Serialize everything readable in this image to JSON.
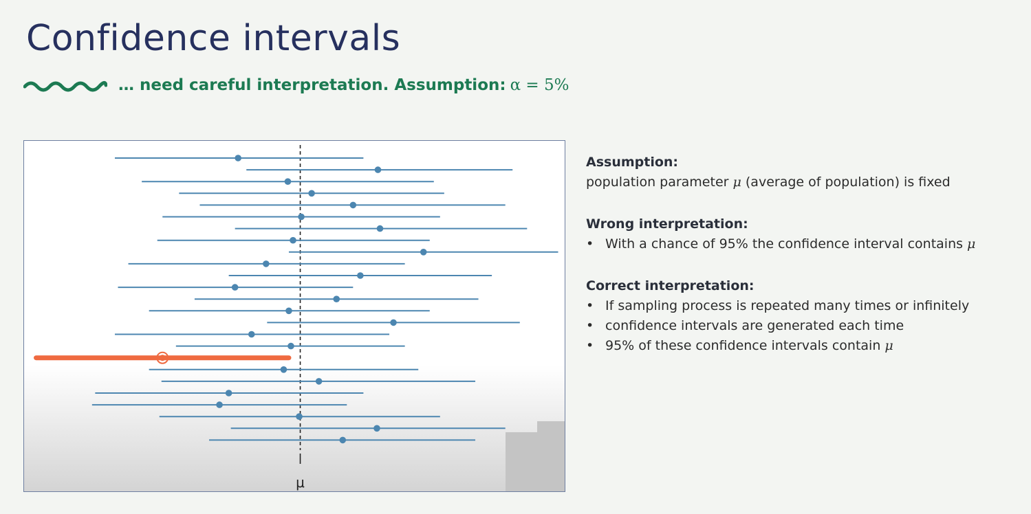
{
  "title": "Confidence intervals",
  "subtitle": {
    "text": "… need careful interpretation.  Assumption:",
    "formula": "α = 5%",
    "wave_color": "#1c7a52"
  },
  "chart_data": {
    "type": "scatter",
    "description_label": "μ",
    "mu": 0,
    "intervals": [
      {
        "lo": -1.79,
        "mid": -0.6,
        "hi": 0.61
      },
      {
        "lo": -0.52,
        "mid": 0.75,
        "hi": 2.05
      },
      {
        "lo": -1.53,
        "mid": -0.12,
        "hi": 1.29
      },
      {
        "lo": -1.17,
        "mid": 0.11,
        "hi": 1.39
      },
      {
        "lo": -0.97,
        "mid": 0.51,
        "hi": 1.98
      },
      {
        "lo": -1.33,
        "mid": 0.01,
        "hi": 1.35
      },
      {
        "lo": -0.63,
        "mid": 0.77,
        "hi": 2.19
      },
      {
        "lo": -1.38,
        "mid": -0.07,
        "hi": 1.25
      },
      {
        "lo": -0.11,
        "mid": 1.19,
        "hi": 2.49
      },
      {
        "lo": -1.66,
        "mid": -0.33,
        "hi": 1.01
      },
      {
        "lo": -0.69,
        "mid": 0.58,
        "hi": 1.85
      },
      {
        "lo": -1.76,
        "mid": -0.63,
        "hi": 0.51
      },
      {
        "lo": -1.02,
        "mid": 0.35,
        "hi": 1.72
      },
      {
        "lo": -1.46,
        "mid": -0.11,
        "hi": 1.25
      },
      {
        "lo": -0.32,
        "mid": 0.9,
        "hi": 2.12
      },
      {
        "lo": -1.79,
        "mid": -0.47,
        "hi": 0.86
      },
      {
        "lo": -1.2,
        "mid": -0.09,
        "hi": 1.01
      },
      {
        "lo": -2.55,
        "mid": -1.33,
        "hi": -0.11,
        "highlight": true
      },
      {
        "lo": -1.46,
        "mid": -0.16,
        "hi": 1.14
      },
      {
        "lo": -1.34,
        "mid": 0.18,
        "hi": 1.69
      },
      {
        "lo": -1.98,
        "mid": -0.69,
        "hi": 0.61
      },
      {
        "lo": -2.01,
        "mid": -0.78,
        "hi": 0.45
      },
      {
        "lo": -1.36,
        "mid": -0.01,
        "hi": 1.35
      },
      {
        "lo": -0.67,
        "mid": 0.74,
        "hi": 1.98
      },
      {
        "lo": -0.88,
        "mid": 0.41,
        "hi": 1.69
      }
    ],
    "xlim": [
      -2.6,
      2.5
    ],
    "colors": {
      "normal": "#4c86b0",
      "highlight": "#ef6a40"
    }
  },
  "panel": {
    "assumption_heading": "Assumption:",
    "assumption_pre": "population parameter ",
    "assumption_mu": "μ",
    "assumption_post": " (average of population) is fixed",
    "wrong_heading": "Wrong interpretation:",
    "wrong_bullet_pre": "With a chance of 95% the confidence interval contains ",
    "wrong_bullet_mu": "μ",
    "correct_heading": "Correct interpretation:",
    "correct_bullet_1": "If sampling process is repeated many times or infinitely",
    "correct_bullet_2": "confidence intervals are generated each time",
    "correct_bullet_3_pre": "95% of these confidence intervals contain ",
    "correct_bullet_3_mu": "μ",
    "bullet_char": "•"
  }
}
